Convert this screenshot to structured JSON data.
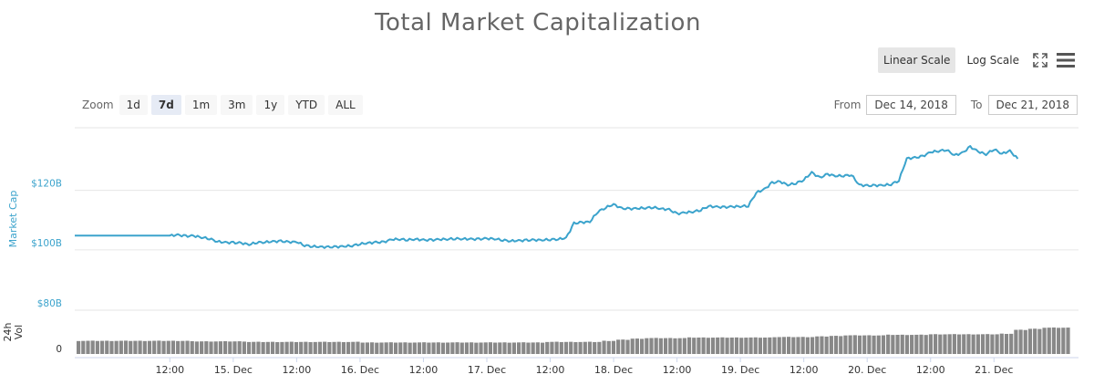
{
  "title": "Total Market Capitalization",
  "scale_buttons": {
    "linear": "Linear Scale",
    "log": "Log Scale"
  },
  "icons": {
    "fullscreen": "fullscreen-icon",
    "menu": "menu-icon"
  },
  "zoom": {
    "label": "Zoom",
    "buttons": [
      "1d",
      "7d",
      "1m",
      "3m",
      "1y",
      "YTD",
      "ALL"
    ],
    "active": "7d"
  },
  "range": {
    "from_label": "From",
    "from_value": "Dec 14, 2018",
    "to_label": "To",
    "to_value": "Dec 21, 2018"
  },
  "colors": {
    "line": "#3ba3cc",
    "bars": "#888888",
    "grid": "#e6e6e6"
  },
  "chart_data": [
    {
      "type": "line",
      "title": "Total Market Capitalization",
      "ylabel": "Market Cap",
      "yticks": [
        {
          "value": 100,
          "label": "$100B"
        },
        {
          "value": 120,
          "label": "$120B"
        }
      ],
      "ylim": [
        92,
        141
      ],
      "x_range_hours": [
        -18,
        172
      ],
      "xticks": [
        {
          "hour": 0,
          "label": "12:00"
        },
        {
          "hour": 12,
          "label": "15. Dec"
        },
        {
          "hour": 24,
          "label": "12:00"
        },
        {
          "hour": 36,
          "label": "16. Dec"
        },
        {
          "hour": 48,
          "label": "12:00"
        },
        {
          "hour": 60,
          "label": "17. Dec"
        },
        {
          "hour": 72,
          "label": "12:00"
        },
        {
          "hour": 84,
          "label": "18. Dec"
        },
        {
          "hour": 96,
          "label": "12:00"
        },
        {
          "hour": 108,
          "label": "19. Dec"
        },
        {
          "hour": 120,
          "label": "12:00"
        },
        {
          "hour": 132,
          "label": "20. Dec"
        },
        {
          "hour": 144,
          "label": "12:00"
        },
        {
          "hour": 156,
          "label": "21. Dec"
        }
      ],
      "series": [
        {
          "values_hourly_from_dec14_12h": [
            104.8,
            105.0,
            104.6,
            104.7,
            104.2,
            103.8,
            102.8,
            102.5,
            102.4,
            102.3,
            101.8,
            102.5,
            102.6,
            102.8,
            102.9,
            102.6,
            102.7,
            101.5,
            101.2,
            101.0,
            100.9,
            101.0,
            101.2,
            101.4,
            102.0,
            102.3,
            102.5,
            102.6,
            103.5,
            103.6,
            103.4,
            103.6,
            103.3,
            103.3,
            103.5,
            103.6,
            103.8,
            103.7,
            103.6,
            103.6,
            103.8,
            103.7,
            103.3,
            103.0,
            103.1,
            103.2,
            103.3,
            103.3,
            103.5,
            103.6,
            104.0,
            108.9,
            109.2,
            109.4,
            112.8,
            114.2,
            115.3,
            113.9,
            113.8,
            113.9,
            114.1,
            114.3,
            113.8,
            113.5,
            112.1,
            112.5,
            112.8,
            113.4,
            114.7,
            114.4,
            114.3,
            114.5,
            114.6,
            114.8,
            119.2,
            120.3,
            122.5,
            122.9,
            121.8,
            122.4,
            123.5,
            126.0,
            124.2,
            125.4,
            124.8,
            124.9,
            125.2,
            121.8,
            121.5,
            121.6,
            121.7,
            122.0,
            123.3,
            130.7,
            130.9,
            131.4,
            132.8,
            133.2,
            133.6,
            131.8,
            132.5,
            134.6,
            133.0,
            132.1,
            133.8,
            132.3,
            133.2,
            130.6
          ],
          "index_step_hours": 1.5
        }
      ]
    },
    {
      "type": "bar",
      "ylabel": "24h Vol",
      "yticks": [
        {
          "value": 0,
          "label": "0"
        },
        {
          "value": 80,
          "label": "$80B"
        }
      ],
      "ylim": [
        0,
        80
      ],
      "series": [
        {
          "name": "24h Vol",
          "values_per_3h_from_dec14_12h": [
            24,
            24,
            24,
            24,
            24,
            24,
            24,
            24,
            23,
            23,
            23,
            23,
            22,
            22,
            22,
            22,
            22,
            22,
            22,
            22,
            21,
            21,
            21,
            21,
            21,
            21,
            21,
            21,
            21,
            21,
            21,
            21,
            21,
            22,
            22,
            22,
            22,
            24,
            26,
            28,
            29,
            29,
            29,
            30,
            30,
            30,
            30,
            30,
            30,
            31,
            31,
            31,
            32,
            33,
            34,
            34,
            34,
            35,
            35,
            35,
            36,
            36,
            36,
            36,
            36,
            37,
            44,
            46,
            48,
            48
          ]
        }
      ]
    }
  ]
}
